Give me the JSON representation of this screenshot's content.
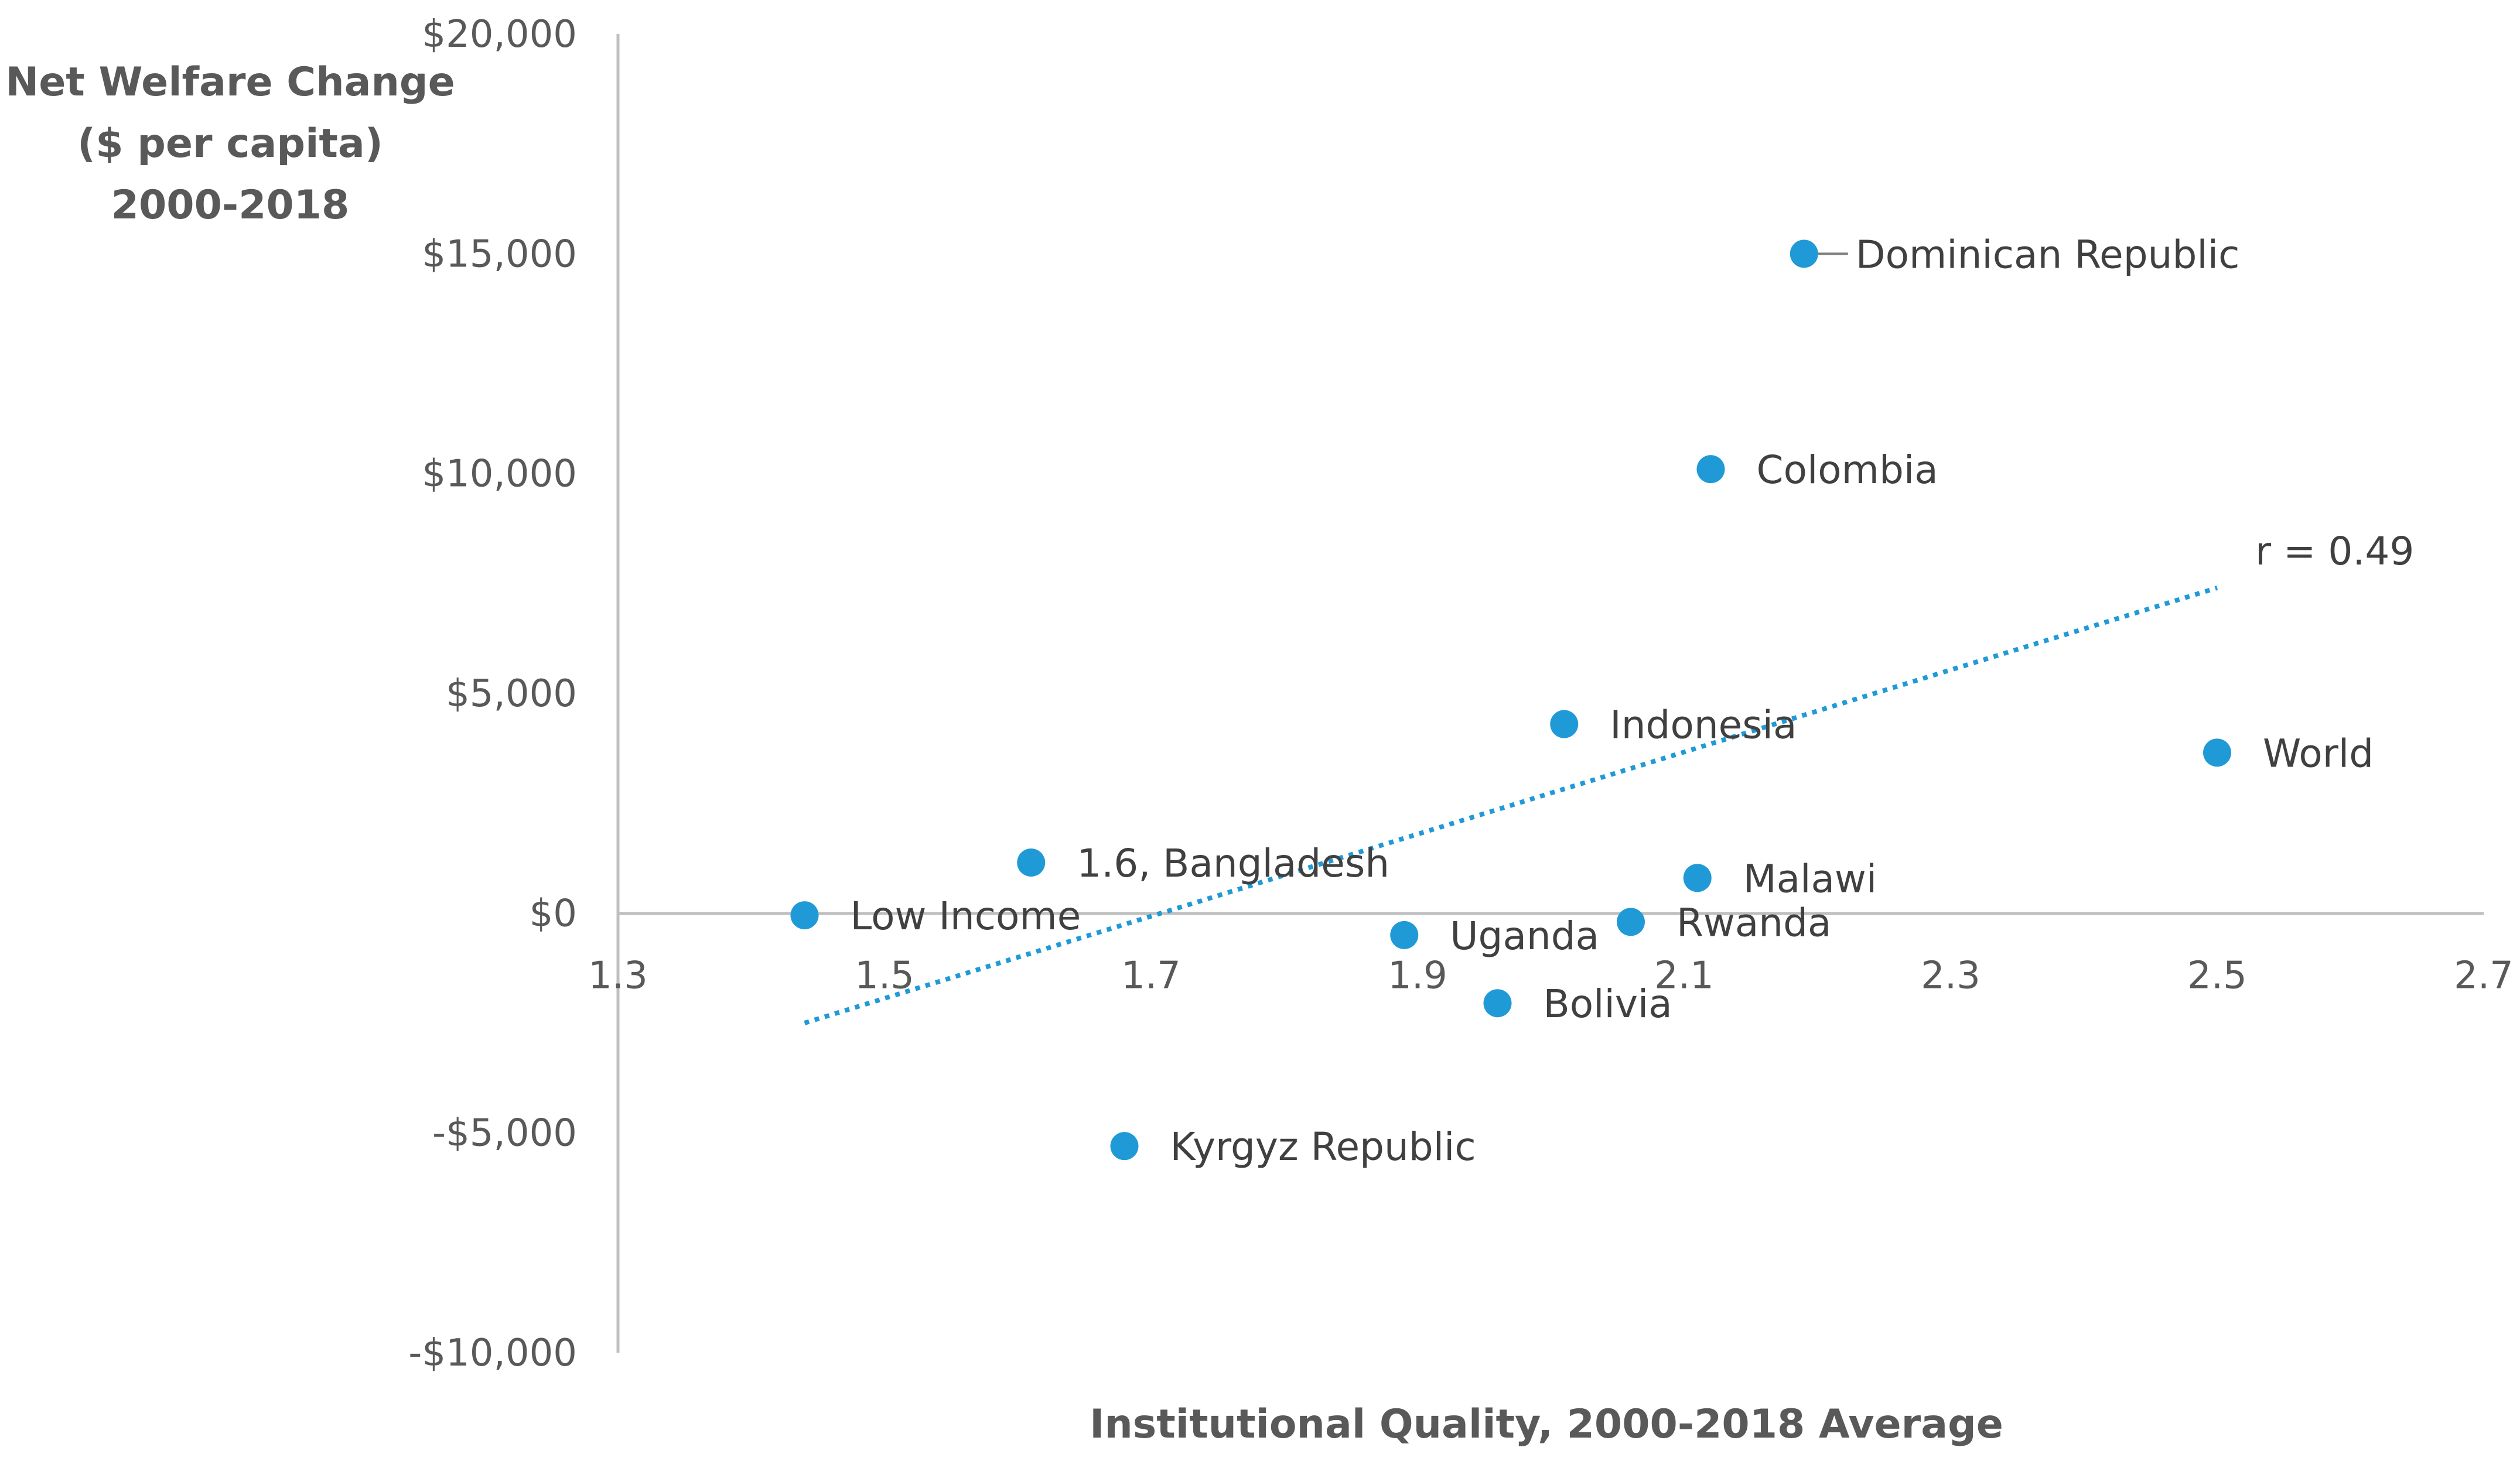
{
  "chart_data": {
    "type": "scatter",
    "title": "",
    "ylabel_lines": [
      "Net Welfare Change",
      "($ per capita)",
      "2000-2018"
    ],
    "xlabel": "Institutional Quality, 2000-2018 Average",
    "xlim": [
      1.3,
      2.7
    ],
    "ylim": [
      -10000,
      20000
    ],
    "x_ticks": [
      1.3,
      1.5,
      1.7,
      1.9,
      2.1,
      2.3,
      2.5,
      2.7
    ],
    "x_tick_labels": [
      "1.3",
      "1.5",
      "1.7",
      "1.9",
      "2.1",
      "2.3",
      "2.5",
      "2.7"
    ],
    "y_ticks": [
      20000,
      15000,
      10000,
      5000,
      0,
      -5000,
      -10000
    ],
    "y_tick_labels": [
      "$20,000",
      "$15,000",
      "$10,000",
      "$5,000",
      "$0",
      "-$5,000",
      "-$10,000"
    ],
    "points": [
      {
        "label": "Dominican Republic",
        "x": 2.19,
        "y": 15000,
        "leader": true
      },
      {
        "label": "Colombia",
        "x": 2.12,
        "y": 10100
      },
      {
        "label": "Indonesia",
        "x": 2.01,
        "y": 4300
      },
      {
        "label": "World",
        "x": 2.5,
        "y": 3650
      },
      {
        "label": "1.6, Bangladesh",
        "x": 1.61,
        "y": 1150
      },
      {
        "label": "Malawi",
        "x": 2.11,
        "y": 800
      },
      {
        "label": "Low Income",
        "x": 1.44,
        "y": -50
      },
      {
        "label": "Rwanda",
        "x": 2.06,
        "y": -200
      },
      {
        "label": "Uganda",
        "x": 1.89,
        "y": -500
      },
      {
        "label": "Bolivia",
        "x": 1.96,
        "y": -2050
      },
      {
        "label": "Kyrgyz Republic",
        "x": 1.68,
        "y": -5300
      }
    ],
    "trendline": {
      "x": [
        1.44,
        2.5
      ],
      "y": [
        -2500,
        7400
      ],
      "style": "dotted"
    },
    "r_label": "r = 0.49",
    "colors": {
      "marker": "#1f9ad6",
      "trend": "#1f9ad6",
      "axis": "#bfbfbf",
      "text": "#404040"
    }
  }
}
